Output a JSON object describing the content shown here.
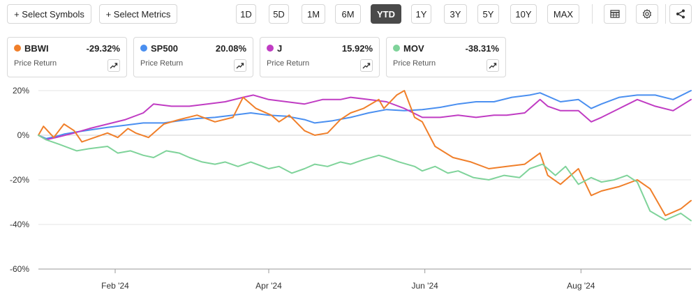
{
  "toolbar": {
    "select_symbols": "+ Select Symbols",
    "select_metrics": "+ Select Metrics",
    "ranges": [
      "1D",
      "5D",
      "1M",
      "6M",
      "YTD",
      "1Y",
      "3Y",
      "5Y",
      "10Y",
      "MAX"
    ],
    "active_range": "YTD",
    "icons": [
      "table-icon",
      "gear-icon",
      "share-icon"
    ]
  },
  "cards": [
    {
      "symbol": "BBWI",
      "value": "-29.32%",
      "metric": "Price Return",
      "color": "#f07f2a"
    },
    {
      "symbol": "SP500",
      "value": "20.08%",
      "metric": "Price Return",
      "color": "#4a8ff0"
    },
    {
      "symbol": "J",
      "value": "15.92%",
      "metric": "Price Return",
      "color": "#c03cc3"
    },
    {
      "symbol": "MOV",
      "value": "-38.31%",
      "metric": "Price Return",
      "color": "#7fd39a"
    }
  ],
  "chart_data": {
    "type": "line",
    "x_type": "date",
    "x_range": [
      "2024-01-02",
      "2024-09-13"
    ],
    "x_ticks": [
      {
        "label": "Feb '24",
        "date": "2024-02-01"
      },
      {
        "label": "Apr '24",
        "date": "2024-04-01"
      },
      {
        "label": "Jun '24",
        "date": "2024-06-01"
      },
      {
        "label": "Aug '24",
        "date": "2024-08-01"
      }
    ],
    "y_ticks": [
      "20%",
      "0%",
      "-20%",
      "-40%",
      "-60%"
    ],
    "y_tick_values": [
      20,
      0,
      -20,
      -40,
      -60
    ],
    "ylim": [
      -60,
      20
    ],
    "grid": "horizontal",
    "series": [
      {
        "name": "SP500",
        "color": "#4a8ff0",
        "points": [
          [
            "2024-01-02",
            0
          ],
          [
            "2024-01-05",
            -1.5
          ],
          [
            "2024-01-09",
            -0.5
          ],
          [
            "2024-01-12",
            0.5
          ],
          [
            "2024-01-17",
            1.5
          ],
          [
            "2024-01-23",
            2.5
          ],
          [
            "2024-01-29",
            3.5
          ],
          [
            "2024-02-05",
            4.5
          ],
          [
            "2024-02-12",
            5.5
          ],
          [
            "2024-02-20",
            5.5
          ],
          [
            "2024-02-26",
            6.5
          ],
          [
            "2024-03-04",
            7.5
          ],
          [
            "2024-03-11",
            8
          ],
          [
            "2024-03-18",
            9
          ],
          [
            "2024-03-25",
            10
          ],
          [
            "2024-04-01",
            9
          ],
          [
            "2024-04-08",
            8.5
          ],
          [
            "2024-04-15",
            7
          ],
          [
            "2024-04-19",
            5.5
          ],
          [
            "2024-04-26",
            6.5
          ],
          [
            "2024-05-03",
            8
          ],
          [
            "2024-05-10",
            10
          ],
          [
            "2024-05-17",
            11.5
          ],
          [
            "2024-05-24",
            11
          ],
          [
            "2024-05-31",
            11.5
          ],
          [
            "2024-06-07",
            12.5
          ],
          [
            "2024-06-14",
            14
          ],
          [
            "2024-06-21",
            15
          ],
          [
            "2024-06-28",
            15
          ],
          [
            "2024-07-05",
            17
          ],
          [
            "2024-07-12",
            18
          ],
          [
            "2024-07-16",
            19
          ],
          [
            "2024-07-24",
            15
          ],
          [
            "2024-07-31",
            16
          ],
          [
            "2024-08-05",
            12
          ],
          [
            "2024-08-09",
            14
          ],
          [
            "2024-08-16",
            17
          ],
          [
            "2024-08-23",
            18
          ],
          [
            "2024-08-30",
            18
          ],
          [
            "2024-09-06",
            16
          ],
          [
            "2024-09-13",
            20
          ]
        ]
      },
      {
        "name": "J",
        "color": "#c03cc3",
        "points": [
          [
            "2024-01-02",
            0
          ],
          [
            "2024-01-05",
            -2
          ],
          [
            "2024-01-09",
            -1
          ],
          [
            "2024-01-16",
            1
          ],
          [
            "2024-01-22",
            3
          ],
          [
            "2024-01-29",
            5
          ],
          [
            "2024-02-05",
            7
          ],
          [
            "2024-02-12",
            10
          ],
          [
            "2024-02-16",
            14
          ],
          [
            "2024-02-23",
            13
          ],
          [
            "2024-03-01",
            13
          ],
          [
            "2024-03-08",
            14
          ],
          [
            "2024-03-15",
            15
          ],
          [
            "2024-03-22",
            17
          ],
          [
            "2024-03-26",
            18
          ],
          [
            "2024-04-01",
            16
          ],
          [
            "2024-04-08",
            15
          ],
          [
            "2024-04-15",
            14
          ],
          [
            "2024-04-22",
            16
          ],
          [
            "2024-04-29",
            16
          ],
          [
            "2024-05-03",
            17
          ],
          [
            "2024-05-10",
            16
          ],
          [
            "2024-05-17",
            15
          ],
          [
            "2024-05-24",
            12
          ],
          [
            "2024-05-31",
            8
          ],
          [
            "2024-06-07",
            8
          ],
          [
            "2024-06-14",
            9
          ],
          [
            "2024-06-21",
            8
          ],
          [
            "2024-06-28",
            9
          ],
          [
            "2024-07-03",
            9
          ],
          [
            "2024-07-10",
            10
          ],
          [
            "2024-07-16",
            16
          ],
          [
            "2024-07-19",
            13
          ],
          [
            "2024-07-24",
            11
          ],
          [
            "2024-07-31",
            11
          ],
          [
            "2024-08-05",
            6
          ],
          [
            "2024-08-09",
            8
          ],
          [
            "2024-08-16",
            12
          ],
          [
            "2024-08-23",
            16
          ],
          [
            "2024-08-30",
            13
          ],
          [
            "2024-09-06",
            11
          ],
          [
            "2024-09-13",
            16
          ]
        ]
      },
      {
        "name": "BBWI",
        "color": "#f07f2a",
        "points": [
          [
            "2024-01-02",
            0
          ],
          [
            "2024-01-04",
            4
          ],
          [
            "2024-01-08",
            -1
          ],
          [
            "2024-01-12",
            5
          ],
          [
            "2024-01-16",
            2
          ],
          [
            "2024-01-19",
            -3
          ],
          [
            "2024-01-24",
            -1
          ],
          [
            "2024-01-29",
            1
          ],
          [
            "2024-02-02",
            -1
          ],
          [
            "2024-02-06",
            3
          ],
          [
            "2024-02-09",
            1
          ],
          [
            "2024-02-14",
            -1
          ],
          [
            "2024-02-20",
            5
          ],
          [
            "2024-02-26",
            7
          ],
          [
            "2024-03-04",
            9
          ],
          [
            "2024-03-11",
            6
          ],
          [
            "2024-03-18",
            8
          ],
          [
            "2024-03-22",
            17
          ],
          [
            "2024-03-27",
            12
          ],
          [
            "2024-04-02",
            9
          ],
          [
            "2024-04-05",
            6
          ],
          [
            "2024-04-09",
            9
          ],
          [
            "2024-04-15",
            2
          ],
          [
            "2024-04-19",
            0
          ],
          [
            "2024-04-24",
            1
          ],
          [
            "2024-04-29",
            7
          ],
          [
            "2024-05-03",
            10
          ],
          [
            "2024-05-08",
            12
          ],
          [
            "2024-05-14",
            16
          ],
          [
            "2024-05-16",
            12
          ],
          [
            "2024-05-21",
            18
          ],
          [
            "2024-05-24",
            20
          ],
          [
            "2024-05-28",
            8
          ],
          [
            "2024-05-31",
            6
          ],
          [
            "2024-06-05",
            -5
          ],
          [
            "2024-06-12",
            -10
          ],
          [
            "2024-06-19",
            -12
          ],
          [
            "2024-06-26",
            -15
          ],
          [
            "2024-07-03",
            -14
          ],
          [
            "2024-07-10",
            -13
          ],
          [
            "2024-07-16",
            -8
          ],
          [
            "2024-07-19",
            -18
          ],
          [
            "2024-07-24",
            -22
          ],
          [
            "2024-07-31",
            -15
          ],
          [
            "2024-08-05",
            -27
          ],
          [
            "2024-08-09",
            -25
          ],
          [
            "2024-08-16",
            -23
          ],
          [
            "2024-08-23",
            -20
          ],
          [
            "2024-08-28",
            -24
          ],
          [
            "2024-09-03",
            -36
          ],
          [
            "2024-09-09",
            -33
          ],
          [
            "2024-09-13",
            -29.32
          ]
        ]
      },
      {
        "name": "MOV",
        "color": "#7fd39a",
        "points": [
          [
            "2024-01-02",
            0
          ],
          [
            "2024-01-05",
            -2
          ],
          [
            "2024-01-10",
            -4
          ],
          [
            "2024-01-17",
            -7
          ],
          [
            "2024-01-22",
            -6
          ],
          [
            "2024-01-29",
            -5
          ],
          [
            "2024-02-02",
            -8
          ],
          [
            "2024-02-07",
            -7
          ],
          [
            "2024-02-12",
            -9
          ],
          [
            "2024-02-16",
            -10
          ],
          [
            "2024-02-21",
            -7
          ],
          [
            "2024-02-26",
            -8
          ],
          [
            "2024-03-01",
            -10
          ],
          [
            "2024-03-06",
            -12
          ],
          [
            "2024-03-11",
            -13
          ],
          [
            "2024-03-15",
            -12
          ],
          [
            "2024-03-20",
            -14
          ],
          [
            "2024-03-25",
            -12
          ],
          [
            "2024-04-01",
            -15
          ],
          [
            "2024-04-05",
            -14
          ],
          [
            "2024-04-10",
            -17
          ],
          [
            "2024-04-15",
            -15
          ],
          [
            "2024-04-19",
            -13
          ],
          [
            "2024-04-24",
            -14
          ],
          [
            "2024-04-29",
            -12
          ],
          [
            "2024-05-03",
            -13
          ],
          [
            "2024-05-08",
            -11
          ],
          [
            "2024-05-14",
            -9
          ],
          [
            "2024-05-17",
            -10
          ],
          [
            "2024-05-22",
            -12
          ],
          [
            "2024-05-28",
            -14
          ],
          [
            "2024-05-31",
            -16
          ],
          [
            "2024-06-05",
            -14
          ],
          [
            "2024-06-10",
            -17
          ],
          [
            "2024-06-14",
            -16
          ],
          [
            "2024-06-20",
            -19
          ],
          [
            "2024-06-26",
            -20
          ],
          [
            "2024-07-02",
            -18
          ],
          [
            "2024-07-08",
            -19
          ],
          [
            "2024-07-12",
            -15
          ],
          [
            "2024-07-17",
            -13
          ],
          [
            "2024-07-22",
            -18
          ],
          [
            "2024-07-26",
            -14
          ],
          [
            "2024-07-31",
            -22
          ],
          [
            "2024-08-05",
            -19
          ],
          [
            "2024-08-09",
            -21
          ],
          [
            "2024-08-14",
            -20
          ],
          [
            "2024-08-19",
            -18
          ],
          [
            "2024-08-23",
            -21
          ],
          [
            "2024-08-28",
            -34
          ],
          [
            "2024-09-03",
            -38
          ],
          [
            "2024-09-09",
            -35
          ],
          [
            "2024-09-13",
            -38.31
          ]
        ]
      }
    ]
  }
}
